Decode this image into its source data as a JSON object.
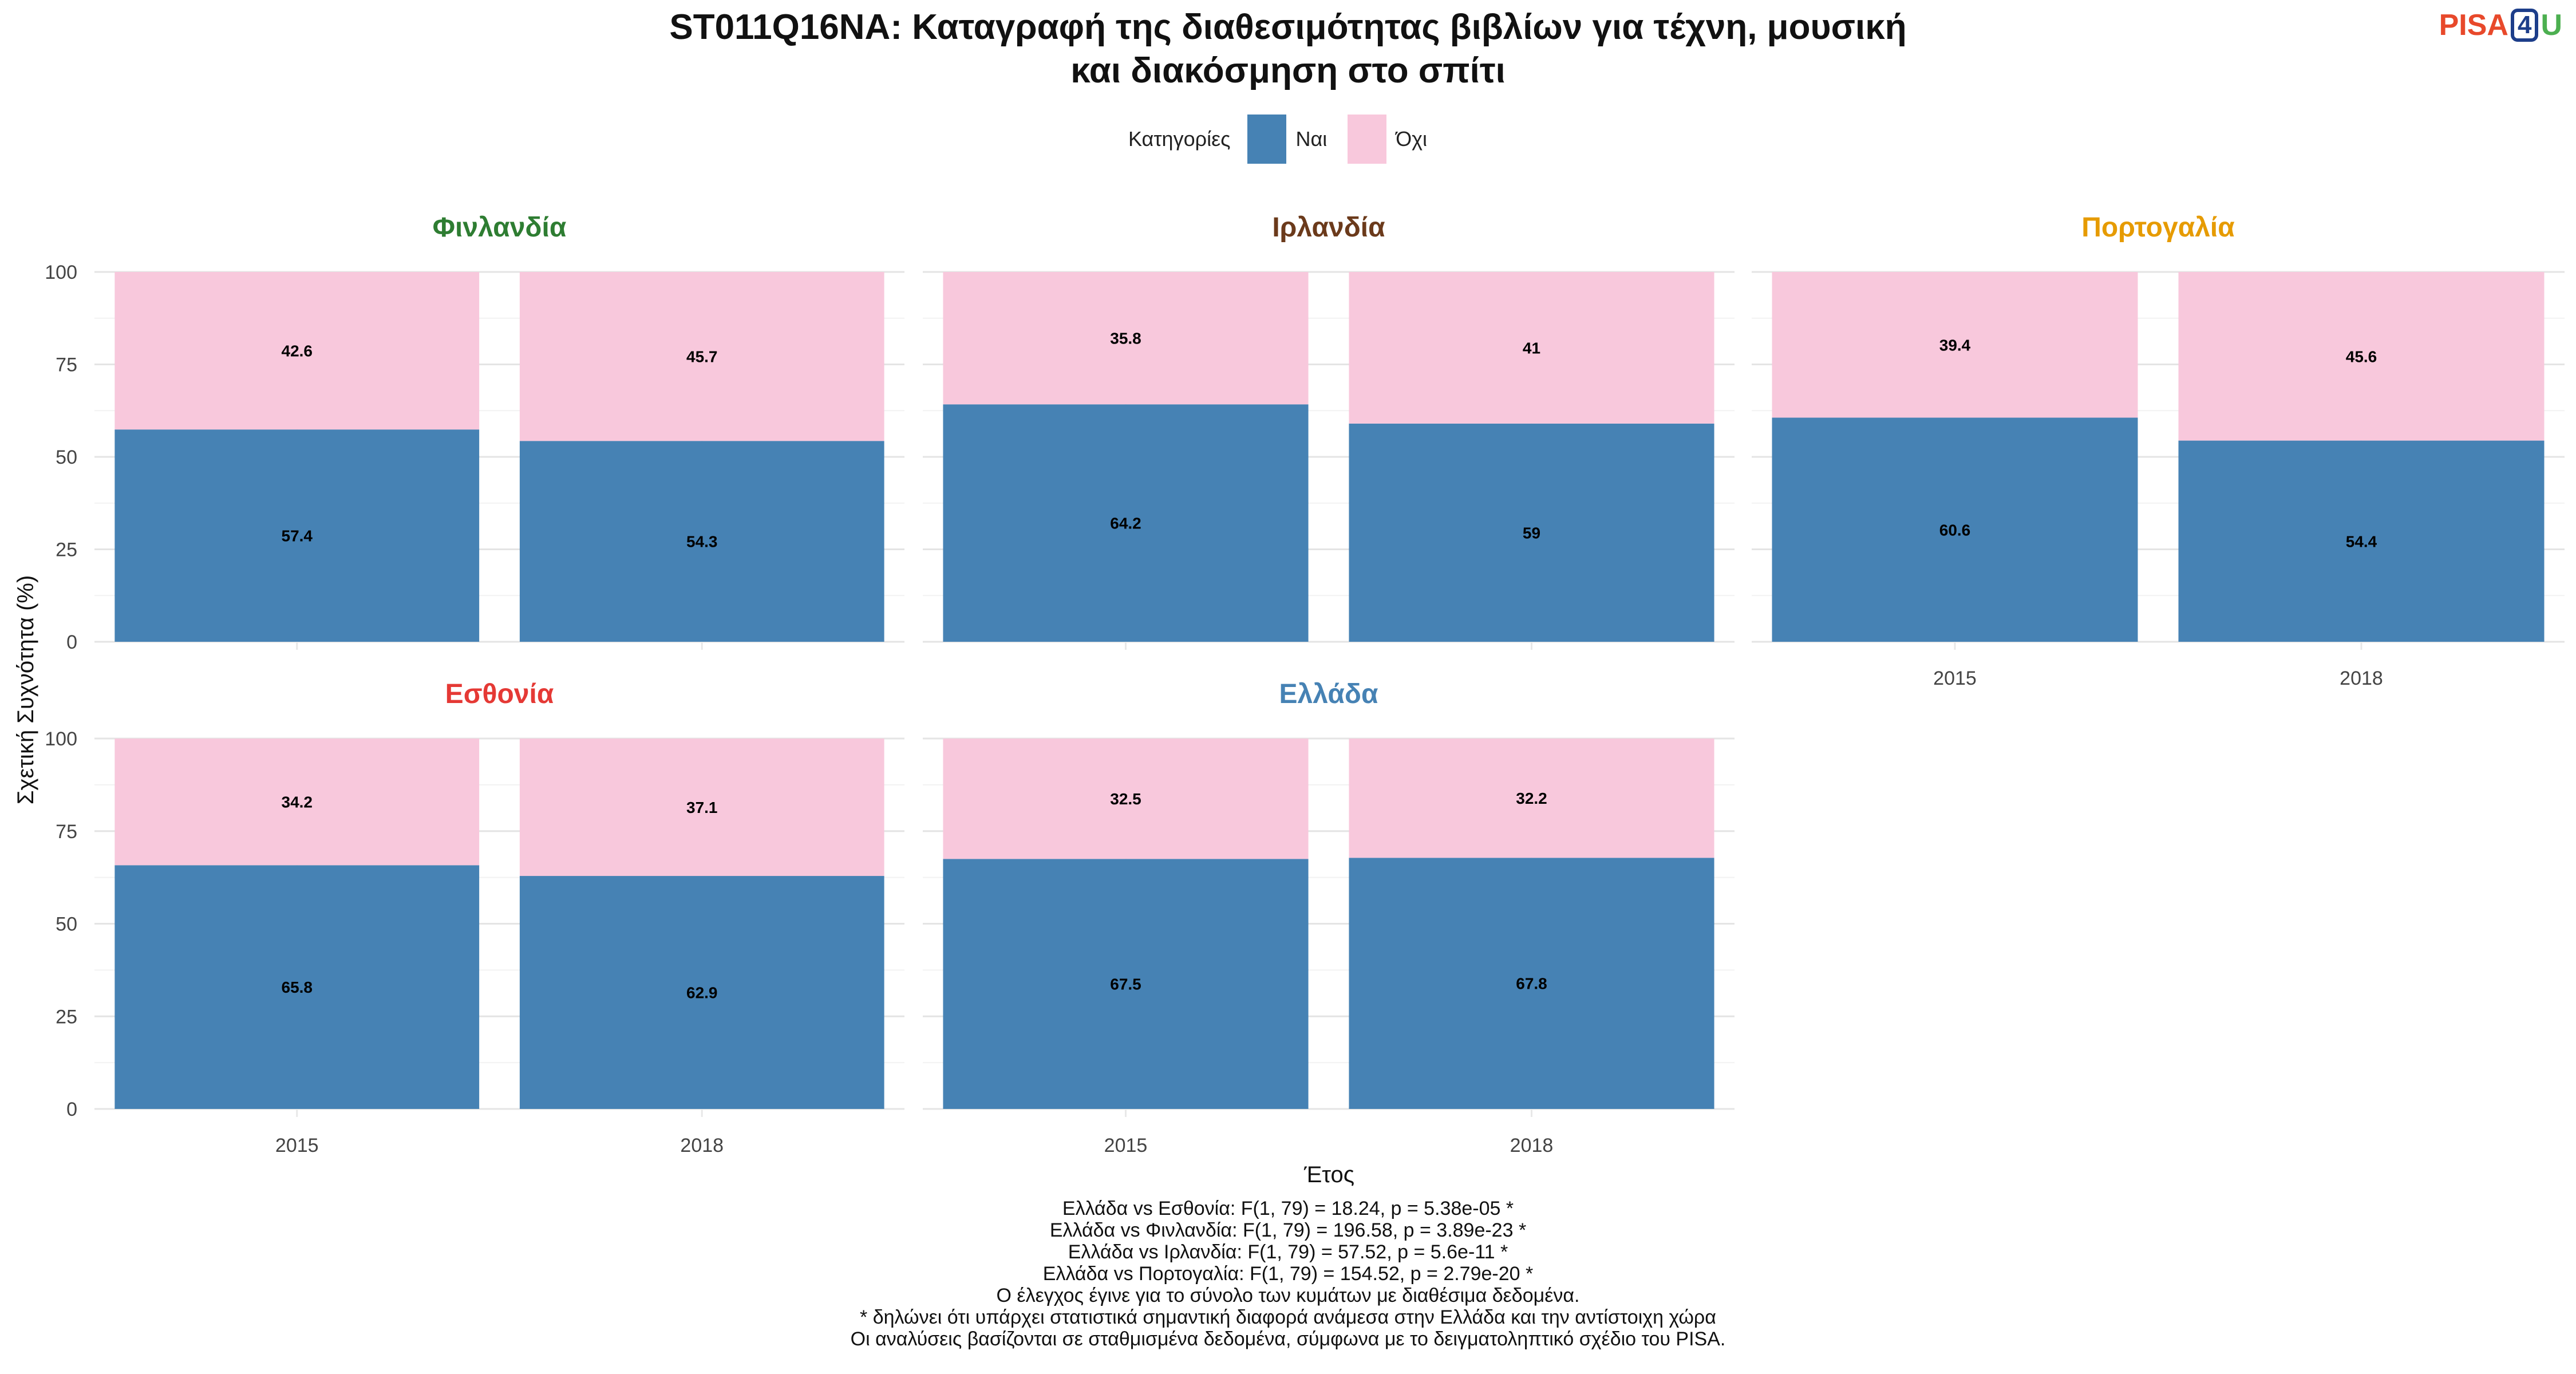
{
  "title_lines": [
    "ST011Q16NA: Καταγραφή της διαθεσιμότητας βιβλίων για τέχνη, μουσική",
    "και διακόσμηση στο σπίτι"
  ],
  "logo": {
    "pisa": "PISA",
    "four": "4",
    "u": "U"
  },
  "notes": [
    "Ελλάδα vs Εσθονία: F(1, 79) = 18.24, p = 5.38e-05 *",
    "Ελλάδα vs Φινλανδία: F(1, 79) = 196.58, p = 3.89e-23 *",
    "Ελλάδα vs Ιρλανδία: F(1, 79) = 57.52, p = 5.6e-11 *",
    "Ελλάδα vs Πορτογαλία: F(1, 79) = 154.52, p = 2.79e-20 *",
    "Ο έλεγχος έγινε για το σύνολο των κυμάτων με διαθέσιμα δεδομένα.",
    "* δηλώνει ότι υπάρχει στατιστικά σημαντική διαφορά ανάμεσα στην Ελλάδα και την αντίστοιχη χώρα",
    "Οι αναλύσεις βασίζονται σε σταθμισμένα δεδομένα, σύμφωνα με το δειγματοληπτικό σχέδιο του PISA."
  ],
  "chart_data": {
    "type": "bar",
    "stacked": true,
    "xlabel": "Έτος",
    "ylabel": "Σχετική Συχνότητα (%)",
    "ylim": [
      0,
      100
    ],
    "yticks": [
      0,
      25,
      50,
      75,
      100
    ],
    "categories": [
      "2015",
      "2018"
    ],
    "legend": {
      "title": "Κατηγορίες",
      "position": "top",
      "entries": [
        {
          "name": "Ναι",
          "color": "#4682b4"
        },
        {
          "name": "Όχι",
          "color": "#f8c8dc"
        }
      ]
    },
    "grid": true,
    "panels": [
      {
        "name": "Φινλανδία",
        "color": "#2e7d32",
        "series": [
          {
            "name": "Ναι",
            "values": [
              57.4,
              54.3
            ]
          },
          {
            "name": "Όχι",
            "values": [
              42.6,
              45.7
            ]
          }
        ]
      },
      {
        "name": "Ιρλανδία",
        "color": "#6b3a1b",
        "series": [
          {
            "name": "Ναι",
            "values": [
              64.2,
              59
            ]
          },
          {
            "name": "Όχι",
            "values": [
              35.8,
              41
            ]
          }
        ]
      },
      {
        "name": "Πορτογαλία",
        "color": "#e69b00",
        "series": [
          {
            "name": "Ναι",
            "values": [
              60.6,
              54.4
            ]
          },
          {
            "name": "Όχι",
            "values": [
              39.4,
              45.6
            ]
          }
        ]
      },
      {
        "name": "Εσθονία",
        "color": "#e53935",
        "series": [
          {
            "name": "Ναι",
            "values": [
              65.8,
              62.9
            ]
          },
          {
            "name": "Όχι",
            "values": [
              34.2,
              37.1
            ]
          }
        ]
      },
      {
        "name": "Ελλάδα",
        "color": "#4682b4",
        "series": [
          {
            "name": "Ναι",
            "values": [
              67.5,
              67.8
            ]
          },
          {
            "name": "Όχι",
            "values": [
              32.5,
              32.2
            ]
          }
        ]
      }
    ]
  }
}
